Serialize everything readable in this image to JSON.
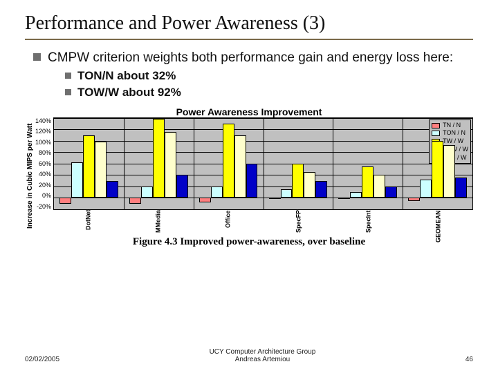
{
  "title": "Performance and Power Awareness (3)",
  "bullet1": "CMPW criterion weights both performance gain and energy loss here:",
  "bullet2a": "TON/N about 32%",
  "bullet2b": "TOW/W about 92%",
  "chart": {
    "type": "bar",
    "title": "Power Awareness Improvement",
    "ylabel": "Increase in Cubic MIPS per Watt",
    "ylim": [
      -20,
      140
    ],
    "ytick_step": 20,
    "yticks": [
      "140%",
      "120%",
      "100%",
      "80%",
      "60%",
      "40%",
      "20%",
      "0%",
      "-20%"
    ],
    "categories": [
      "DotNet",
      "MMedia",
      "Office",
      "SpecFP",
      "SpecInt",
      "GEOMEAN"
    ],
    "series": [
      {
        "name": "TN / N",
        "color": "#ff7f7f"
      },
      {
        "name": "TON / N",
        "color": "#ccffff"
      },
      {
        "name": "TW / W",
        "color": "#ffff00"
      },
      {
        "name": "TOW / W",
        "color": "#ffffcc"
      },
      {
        "name": "TOS / W",
        "color": "#0000c8"
      }
    ],
    "data": {
      "DotNet": [
        -10,
        62,
        110,
        98,
        30
      ],
      "MMedia": [
        -10,
        20,
        138,
        115,
        40
      ],
      "Office": [
        -8,
        20,
        130,
        110,
        60
      ],
      "SpecFP": [
        0,
        15,
        60,
        45,
        30
      ],
      "SpecInt": [
        -2,
        10,
        55,
        40,
        20
      ],
      "GEOMEAN": [
        -6,
        32,
        100,
        92,
        35
      ]
    },
    "background_color": "#c0c0c0",
    "grid_color": "#000000",
    "fontsize_axis": 9,
    "fontsize_title": 14
  },
  "caption": "Figure 4.3 Improved power-awareness, over baseline",
  "footer": {
    "date": "02/02/2005",
    "center1": "UCY Computer Architecture Group",
    "center2": "Andreas Artemiou",
    "page": "46"
  }
}
